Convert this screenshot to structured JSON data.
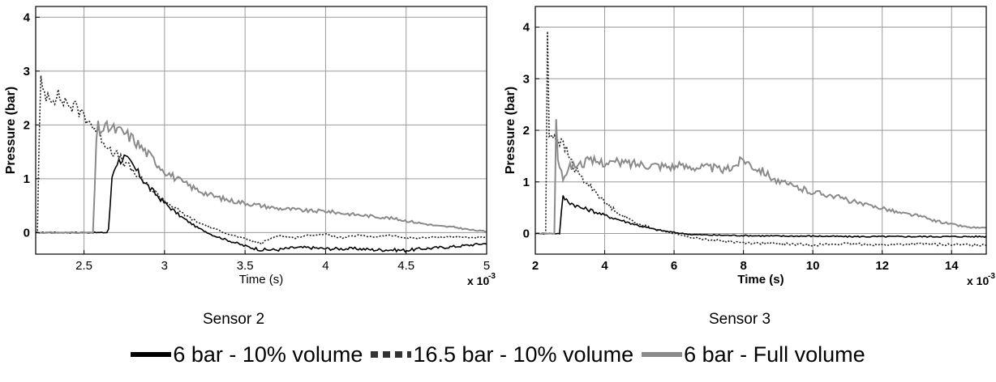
{
  "colors": {
    "series_10pct_6bar": "#000000",
    "series_10pct_16_5bar": "#202020",
    "series_full_6bar": "#8a8a8a",
    "grid": "#9a9a9a"
  },
  "captions": [
    "Sensor 2",
    "Sensor 3"
  ],
  "legend": [
    {
      "label": "6 bar - 10% volume",
      "style": "solid",
      "color": "#000000"
    },
    {
      "label": "16.5 bar - 10% volume",
      "style": "dotted",
      "color": "#333333"
    },
    {
      "label": "6 bar - Full volume",
      "style": "solid",
      "color": "#8a8a8a"
    }
  ],
  "chart_data": [
    {
      "type": "line",
      "xlabel": "Time (s)",
      "ylabel": "Pressure (bar)",
      "x_multiplier_label": "x 10",
      "x_multiplier_exp": "-3",
      "xlim": [
        2.2,
        5.0
      ],
      "ylim": [
        -0.4,
        4.2
      ],
      "xticks": [
        2.5,
        3,
        3.5,
        4,
        4.5,
        5
      ],
      "xtick_labels": [
        "2.5",
        "3",
        "3.5",
        "4",
        "4.5",
        "5"
      ],
      "yticks": [
        0,
        1,
        2,
        3,
        4
      ],
      "ytick_labels": [
        "0",
        "1",
        "2",
        "3",
        "4"
      ],
      "grid": true,
      "series": [
        {
          "name": "6 bar - 10% volume",
          "style": "solid",
          "x": [
            2.2,
            2.6,
            2.65,
            2.66,
            2.67,
            2.7,
            2.75,
            2.8,
            2.85,
            2.9,
            2.95,
            3.0,
            3.1,
            3.2,
            3.3,
            3.4,
            3.5,
            3.6,
            3.7,
            3.8,
            3.9,
            4.0,
            4.1,
            4.2,
            4.3,
            4.4,
            4.5,
            4.6,
            4.7,
            4.8,
            5.0
          ],
          "y": [
            0,
            0,
            0,
            0.3,
            1.0,
            1.3,
            1.4,
            1.25,
            1.05,
            0.85,
            0.7,
            0.55,
            0.3,
            0.1,
            -0.05,
            -0.15,
            -0.25,
            -0.32,
            -0.32,
            -0.28,
            -0.28,
            -0.3,
            -0.3,
            -0.3,
            -0.32,
            -0.32,
            -0.33,
            -0.3,
            -0.28,
            -0.26,
            -0.2
          ]
        },
        {
          "name": "16.5 bar - 10% volume",
          "style": "dotted",
          "x": [
            2.2,
            2.215,
            2.22,
            2.23,
            2.25,
            2.3,
            2.35,
            2.4,
            2.45,
            2.5,
            2.55,
            2.6,
            2.65,
            2.7,
            2.75,
            2.8,
            2.9,
            3.0,
            3.1,
            3.2,
            3.3,
            3.4,
            3.5,
            3.6,
            3.7,
            3.8,
            3.9,
            4.0,
            4.1,
            4.2,
            4.3,
            4.4,
            4.5,
            4.6,
            4.7,
            4.8,
            5.0
          ],
          "y": [
            0,
            0,
            1.5,
            2.8,
            2.6,
            2.55,
            2.5,
            2.4,
            2.3,
            2.2,
            2.0,
            1.8,
            1.6,
            1.45,
            1.3,
            1.15,
            0.85,
            0.6,
            0.38,
            0.2,
            0.08,
            -0.03,
            -0.12,
            -0.2,
            -0.05,
            -0.1,
            -0.05,
            -0.03,
            -0.1,
            -0.05,
            -0.08,
            -0.05,
            -0.1,
            -0.1,
            -0.08,
            -0.08,
            -0.1
          ]
        },
        {
          "name": "6 bar - Full volume",
          "style": "solid",
          "x": [
            2.2,
            2.56,
            2.57,
            2.58,
            2.6,
            2.65,
            2.7,
            2.75,
            2.8,
            2.85,
            2.9,
            2.95,
            3.0,
            3.1,
            3.2,
            3.3,
            3.4,
            3.5,
            3.6,
            3.7,
            3.8,
            3.9,
            4.0,
            4.1,
            4.2,
            4.3,
            4.4,
            4.5,
            4.6,
            4.7,
            4.8,
            4.9,
            5.0
          ],
          "y": [
            0,
            0,
            1.2,
            2.0,
            1.9,
            1.95,
            1.9,
            1.85,
            1.75,
            1.6,
            1.45,
            1.3,
            1.15,
            0.95,
            0.8,
            0.68,
            0.6,
            0.55,
            0.5,
            0.45,
            0.43,
            0.4,
            0.4,
            0.36,
            0.33,
            0.3,
            0.27,
            0.22,
            0.17,
            0.12,
            0.1,
            0.05,
            0.02
          ]
        }
      ]
    },
    {
      "type": "line",
      "xlabel": "Time (s)",
      "ylabel": "Pressure (bar)",
      "x_multiplier_label": "x 10",
      "x_multiplier_exp": "-3",
      "xlim": [
        2.0,
        15.0
      ],
      "ylim": [
        -0.4,
        4.4
      ],
      "xticks": [
        2,
        4,
        6,
        8,
        10,
        12,
        14
      ],
      "xtick_labels": [
        "2",
        "4",
        "6",
        "8",
        "10",
        "12",
        "14"
      ],
      "yticks": [
        0,
        1,
        2,
        3,
        4
      ],
      "ytick_labels": [
        "0",
        "1",
        "2",
        "3",
        "4"
      ],
      "grid": true,
      "series": [
        {
          "name": "6 bar - 10% volume",
          "style": "solid",
          "x": [
            2.0,
            2.7,
            2.75,
            2.8,
            3.0,
            3.3,
            3.6,
            4.0,
            4.5,
            5.0,
            5.5,
            6.0,
            6.5,
            7.0,
            8.0,
            9.0,
            10.0,
            11.0,
            12.0,
            13.0,
            14.0,
            15.0
          ],
          "y": [
            0,
            0,
            0.4,
            0.7,
            0.6,
            0.5,
            0.45,
            0.35,
            0.25,
            0.15,
            0.07,
            0.02,
            -0.02,
            -0.03,
            -0.04,
            -0.05,
            -0.05,
            -0.06,
            -0.06,
            -0.06,
            -0.06,
            -0.06
          ]
        },
        {
          "name": "16.5 bar - 10% volume",
          "style": "dotted",
          "x": [
            2.0,
            2.3,
            2.35,
            2.38,
            2.45,
            2.55,
            2.7,
            2.9,
            3.1,
            3.3,
            3.5,
            3.7,
            4.0,
            4.5,
            5.0,
            5.5,
            6.0,
            6.5,
            7.0,
            8.0,
            9.0,
            10.0,
            11.0,
            12.0,
            13.0,
            14.0,
            15.0
          ],
          "y": [
            0,
            0,
            4.0,
            2.0,
            1.9,
            1.9,
            1.8,
            1.6,
            1.3,
            1.1,
            0.95,
            0.85,
            0.6,
            0.35,
            0.18,
            0.08,
            0.0,
            -0.08,
            -0.12,
            -0.18,
            -0.2,
            -0.22,
            -0.2,
            -0.22,
            -0.2,
            -0.22,
            -0.22
          ]
        },
        {
          "name": "6 bar - Full volume",
          "style": "solid",
          "x": [
            2.0,
            2.55,
            2.6,
            2.65,
            2.7,
            2.8,
            2.9,
            3.0,
            3.3,
            3.5,
            4.0,
            4.5,
            5.0,
            5.5,
            6.0,
            6.5,
            7.0,
            7.5,
            7.8,
            8.0,
            8.3,
            8.6,
            9.0,
            9.5,
            10.0,
            10.5,
            11.0,
            11.5,
            12.0,
            12.5,
            13.0,
            13.5,
            14.0,
            14.5,
            15.0
          ],
          "y": [
            0,
            0,
            2.3,
            1.5,
            1.2,
            1.1,
            1.2,
            1.3,
            1.35,
            1.4,
            1.38,
            1.37,
            1.35,
            1.33,
            1.3,
            1.3,
            1.28,
            1.22,
            1.35,
            1.45,
            1.3,
            1.2,
            1.0,
            0.9,
            0.8,
            0.75,
            0.65,
            0.55,
            0.5,
            0.4,
            0.35,
            0.25,
            0.18,
            0.12,
            0.1
          ]
        }
      ]
    }
  ]
}
